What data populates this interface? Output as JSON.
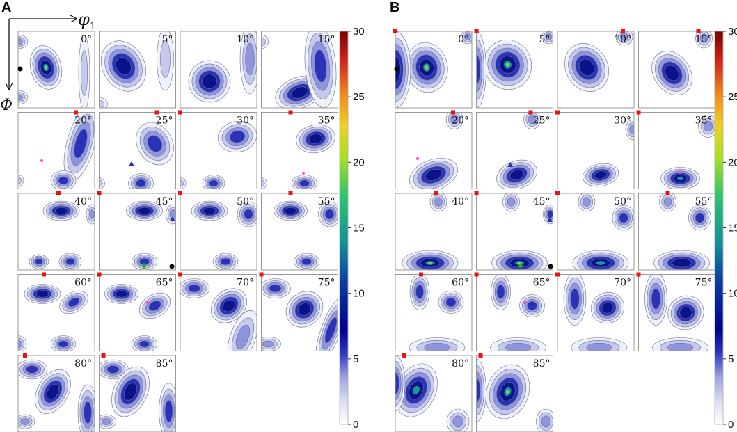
{
  "panels": [
    {
      "letter": "A",
      "angles": [
        "0°",
        "5°",
        "10°",
        "15°",
        "20°",
        "25°",
        "30°",
        "35°",
        "40°",
        "45°",
        "50°",
        "55°",
        "60°",
        "65°",
        "70°",
        "75°",
        "80°",
        "85°"
      ]
    },
    {
      "letter": "B",
      "angles": [
        "0°",
        "5°",
        "10°",
        "15°",
        "20°",
        "25°",
        "30°",
        "35°",
        "40°",
        "45°",
        "50°",
        "55°",
        "60°",
        "65°",
        "70°",
        "75°",
        "80°",
        "85°"
      ]
    }
  ],
  "axes": {
    "x_label": "φ",
    "x_subscript": "1",
    "y_label": "Φ"
  },
  "colorbar": {
    "ticks": [
      "0",
      "5",
      "10",
      "15",
      "20",
      "25",
      "30"
    ],
    "min": 0,
    "max": 30,
    "stops": [
      "#ffffff",
      "#b8bce6",
      "#6a73d2",
      "#1c2ab8",
      "#00008c",
      "#1458b0",
      "#1aa69a",
      "#5cd05a",
      "#c8e61e",
      "#f2c018",
      "#e8641c",
      "#c81414",
      "#780000"
    ]
  },
  "colors": {
    "frame": "#999999",
    "marker_square": "#ee1111",
    "marker_dot": "#000000",
    "marker_triangle": "#2233bb",
    "marker_star": "#ff44cc",
    "marker_diamond": "#22aa22"
  }
}
